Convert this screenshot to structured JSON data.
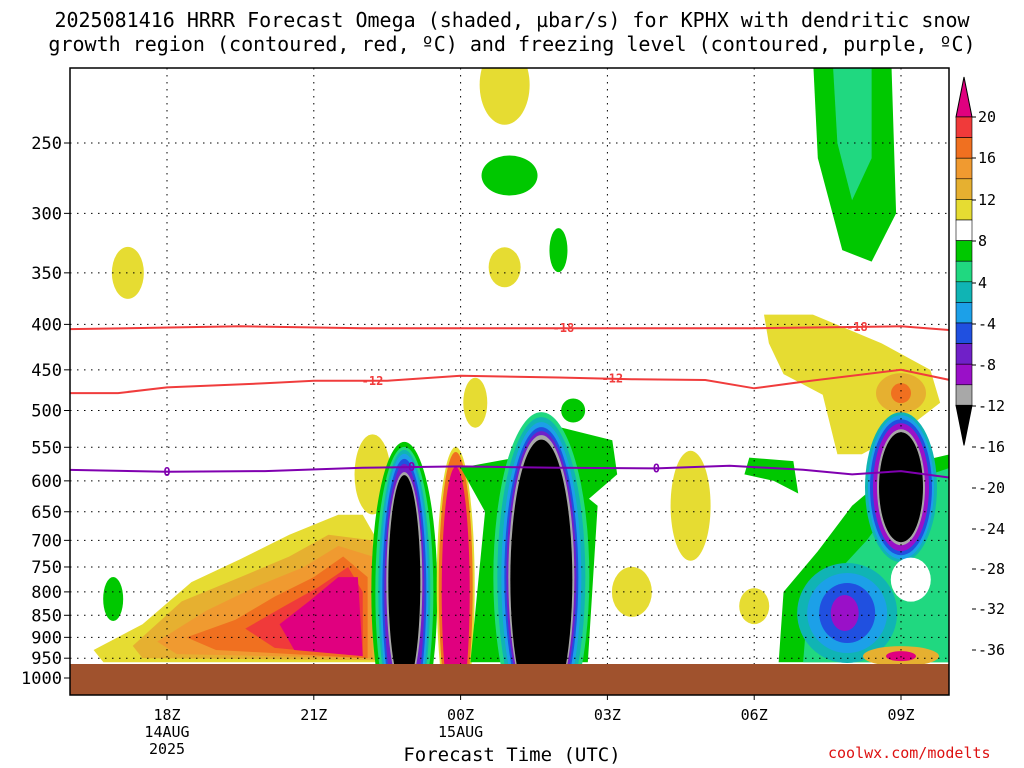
{
  "title_line1": "2025081416 HRRR Forecast Omega (shaded, µbar/s) for KPHX with dendritic snow",
  "title_line2": "growth region (contoured, red, ºC) and freezing level (contoured, purple, ºC)",
  "credit": "coolwx.com/modelts",
  "chart_data": {
    "type": "heatmap",
    "title": "2025081416 HRRR Forecast Omega (shaded, µbar/s) for KPHX with dendritic snow growth region (contoured, red, ºC) and freezing level (contoured, purple, ºC)",
    "xlabel": "Forecast Time (UTC)",
    "ylabel": "",
    "y_scale": "log-pressure (inverted)",
    "ylim": [
      1000,
      200
    ],
    "y_ticks": [
      250,
      300,
      350,
      400,
      450,
      500,
      550,
      600,
      650,
      700,
      750,
      800,
      850,
      900,
      950,
      1000
    ],
    "x_ticks": [
      {
        "hour": 18,
        "label": "18Z",
        "sub1": "14AUG",
        "sub2": "2025"
      },
      {
        "hour": 21,
        "label": "21Z",
        "sub1": "",
        "sub2": ""
      },
      {
        "hour": 24,
        "label": "00Z",
        "sub1": "15AUG",
        "sub2": ""
      },
      {
        "hour": 27,
        "label": "03Z",
        "sub1": "",
        "sub2": ""
      },
      {
        "hour": 30,
        "label": "06Z",
        "sub1": "",
        "sub2": ""
      },
      {
        "hour": 33,
        "label": "09Z",
        "sub1": "",
        "sub2": ""
      }
    ],
    "xlim_hours": [
      16,
      34
    ],
    "grid": true,
    "colorbar": {
      "labels": [
        "20",
        "16",
        "12",
        "8",
        "4",
        "-4",
        "-8",
        "-12",
        "-16",
        "-20",
        "-24",
        "-28",
        "-32",
        "-36"
      ],
      "bins": [
        {
          "range": "> 20",
          "color": "#e0007f"
        },
        {
          "range": "16 – 20",
          "color": "#f03a3a"
        },
        {
          "range": "12 – 16",
          "color": "#f07020"
        },
        {
          "range": "8 – 12",
          "color": "#f09a30"
        },
        {
          "range": "4 – 8",
          "color": "#e6b030"
        },
        {
          "range": "4 – 4",
          "color": "#e6dc32"
        },
        {
          "range": "-4 – 4",
          "color": "#ffffff"
        },
        {
          "range": "-8 – -4",
          "color": "#00c800"
        },
        {
          "range": "-12 – -8",
          "color": "#20d880"
        },
        {
          "range": "-16 – -12",
          "color": "#10b4b4"
        },
        {
          "range": "-20 – -16",
          "color": "#1ca0e8"
        },
        {
          "range": "-24 – -20",
          "color": "#2050e0"
        },
        {
          "range": "-28 – -24",
          "color": "#7020c8"
        },
        {
          "range": "-32 – -28",
          "color": "#9a10c8"
        },
        {
          "range": "-36 – -32",
          "color": "#a8a8a8"
        },
        {
          "range": "< -36",
          "color": "#000000"
        }
      ]
    },
    "contours": [
      {
        "name": "-18 ºC isotherm",
        "label": "-18",
        "color": "#f03c3c",
        "points": [
          [
            16,
            405
          ],
          [
            19.5,
            402
          ],
          [
            22,
            404
          ],
          [
            26,
            404
          ],
          [
            30,
            404
          ],
          [
            33,
            402
          ],
          [
            34,
            406
          ]
        ],
        "label_hours": [
          26.1,
          32.1
        ]
      },
      {
        "name": "-12 ºC isotherm",
        "label": "-12",
        "color": "#f03c3c",
        "points": [
          [
            16,
            478
          ],
          [
            17,
            478
          ],
          [
            18,
            471
          ],
          [
            20,
            466
          ],
          [
            21,
            463
          ],
          [
            22.5,
            463
          ],
          [
            24,
            457
          ],
          [
            26,
            459
          ],
          [
            27.5,
            461
          ],
          [
            29,
            462
          ],
          [
            30,
            472
          ],
          [
            31,
            464
          ],
          [
            33,
            450
          ],
          [
            34,
            462
          ]
        ],
        "label_hours": [
          22.2,
          27.1
        ]
      },
      {
        "name": "0 ºC freezing level",
        "label": "0",
        "color": "#8000b0",
        "points": [
          [
            16,
            583
          ],
          [
            18,
            586
          ],
          [
            20,
            585
          ],
          [
            22,
            580
          ],
          [
            24,
            578
          ],
          [
            26,
            580
          ],
          [
            28,
            581
          ],
          [
            29.5,
            577
          ],
          [
            31,
            583
          ],
          [
            32,
            590
          ],
          [
            33,
            585
          ],
          [
            34,
            595
          ]
        ],
        "label_hours": [
          18,
          23,
          28
        ]
      }
    ],
    "omega_features": [
      {
        "value_range": "4 – 8",
        "center_hour": 24.7,
        "center_pressure": 210,
        "note": "upper yellow blob"
      },
      {
        "value_range": "-8 – -4",
        "center_hour": 25.0,
        "center_pressure": 270,
        "note": "green blob"
      },
      {
        "value_range": "-8 – -16",
        "center_hour": 32.0,
        "center_pressure": 230,
        "note": "upper green/teal plume"
      },
      {
        "value_range": "< -36",
        "center_hour": 22.8,
        "center_pressure": 780,
        "note": "black core"
      },
      {
        "value_range": "> 20",
        "center_hour": 24.0,
        "center_pressure": 815,
        "note": "magenta updraft"
      },
      {
        "value_range": "< -36",
        "center_hour": 25.6,
        "center_pressure": 770,
        "note": "black core"
      },
      {
        "value_range": "> 20",
        "center_hour": 21.1,
        "center_pressure": 850,
        "note": "magenta updraft"
      },
      {
        "value_range": "-36 – -24",
        "center_hour": 33.0,
        "center_pressure": 640,
        "note": "dark core near 09Z"
      },
      {
        "value_range": "-28 – -24",
        "center_hour": 31.8,
        "center_pressure": 845,
        "note": "purple core low levels"
      },
      {
        "value_range": "> 20",
        "center_hour": 33.0,
        "center_pressure": 945,
        "note": "small magenta cell"
      }
    ]
  }
}
